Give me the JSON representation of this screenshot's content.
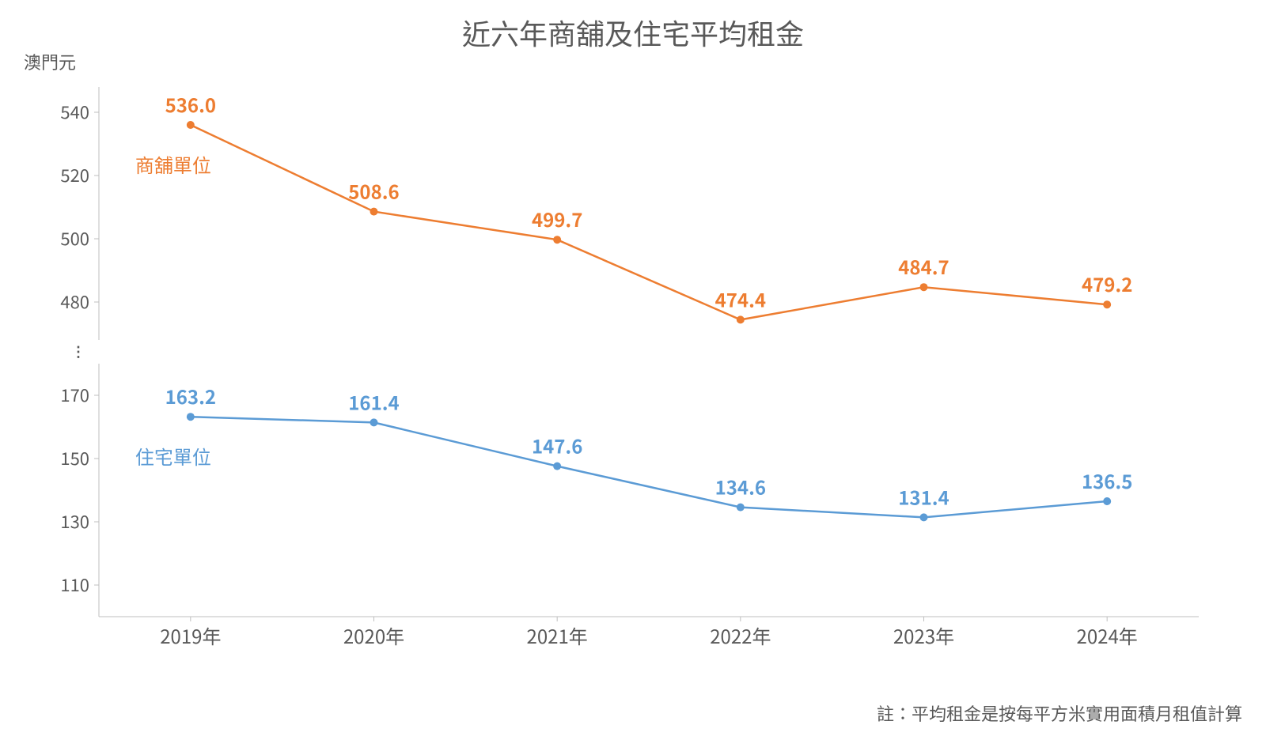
{
  "title": "近六年商舖及住宅平均租金",
  "y_unit_label": "澳門元",
  "footnote": "註：平均租金是按每平方米實用面積月租值計算",
  "chart": {
    "type": "line",
    "background_color": "#ffffff",
    "axis_color": "#bfbfbf",
    "tick_label_color": "#595959",
    "tick_fontsize": 22,
    "x_label_fontsize": 24,
    "title_fontsize": 36,
    "data_label_fontsize": 24,
    "series_label_fontsize": 24,
    "axis_break": true,
    "categories": [
      "2019年",
      "2020年",
      "2021年",
      "2022年",
      "2023年",
      "2024年"
    ],
    "upper_panel": {
      "ylim": [
        468,
        548
      ],
      "yticks": [
        480,
        500,
        520,
        540
      ]
    },
    "lower_panel": {
      "ylim": [
        100,
        180
      ],
      "yticks": [
        110,
        130,
        150,
        170
      ]
    },
    "line_width": 2.5,
    "marker_style": "circle",
    "marker_radius": 5,
    "series": [
      {
        "id": "commercial",
        "name": "商舖單位",
        "panel": "upper",
        "color": "#ed7d31",
        "values": [
          536.0,
          508.6,
          499.7,
          474.4,
          484.7,
          479.2
        ],
        "value_labels": [
          "536.0",
          "508.6",
          "499.7",
          "474.4",
          "484.7",
          "479.2"
        ]
      },
      {
        "id": "residential",
        "name": "住宅單位",
        "panel": "lower",
        "color": "#5b9bd5",
        "values": [
          163.2,
          161.4,
          147.6,
          134.6,
          131.4,
          136.5
        ],
        "value_labels": [
          "163.2",
          "161.4",
          "147.6",
          "134.6",
          "131.4",
          "136.5"
        ]
      }
    ]
  }
}
